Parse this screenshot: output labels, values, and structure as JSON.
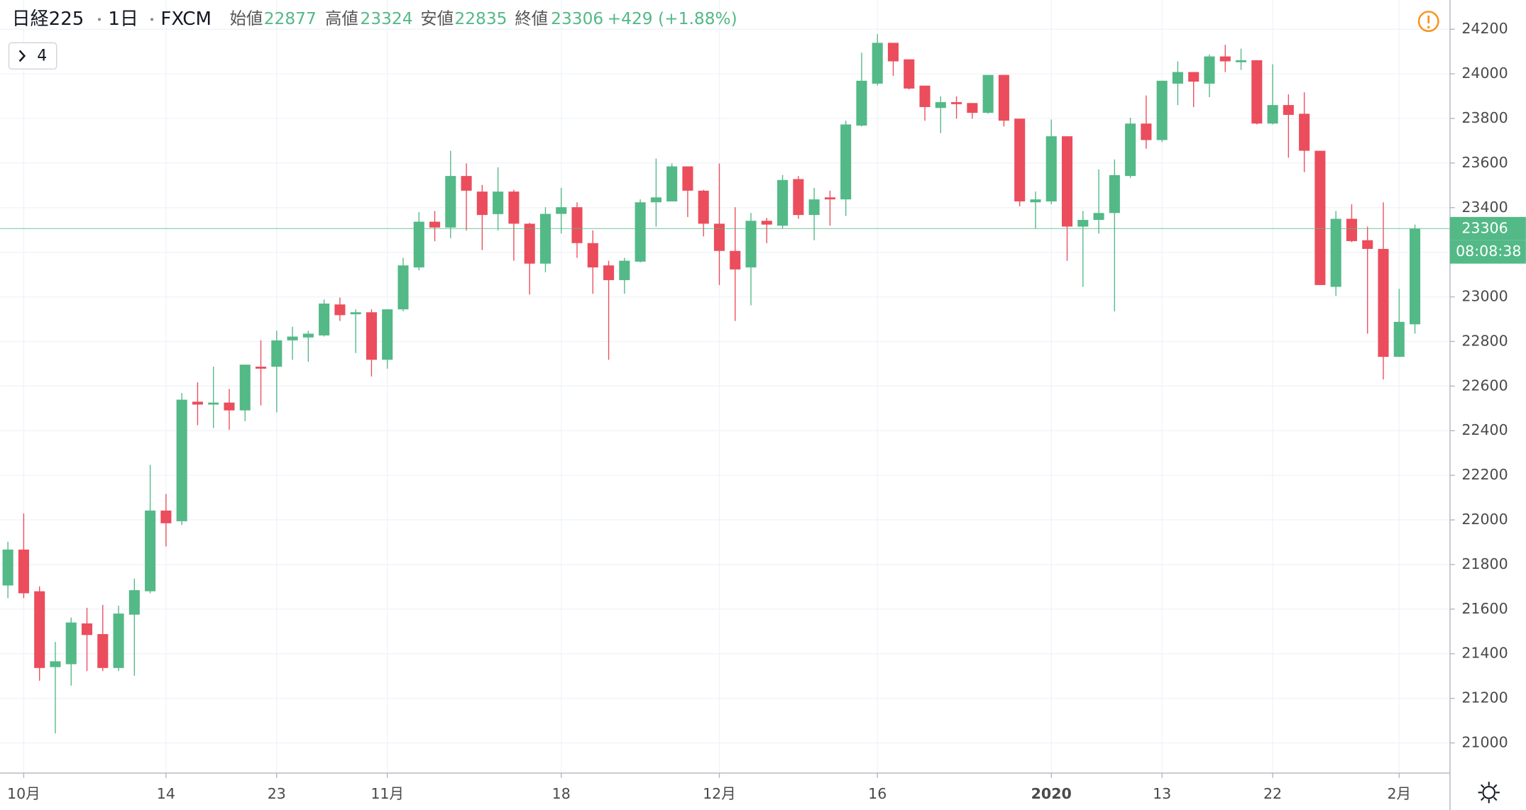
{
  "chart_data": {
    "type": "candlestick",
    "symbol": "日経225",
    "interval": "1日",
    "source": "FXCM",
    "header": {
      "open_label": "始値",
      "open": 22877,
      "high_label": "高値",
      "high": 23324,
      "low_label": "安値",
      "low": 22835,
      "close_label": "終値",
      "close": 23306,
      "change": "+429 (+1.88%)"
    },
    "indicator_count": 4,
    "countdown": "08:08:38",
    "categories": [
      null,
      "10月",
      null,
      null,
      null,
      null,
      null,
      null,
      null,
      null,
      "14",
      null,
      null,
      null,
      null,
      null,
      null,
      "23",
      null,
      null,
      null,
      null,
      null,
      null,
      "11月",
      null,
      null,
      null,
      null,
      null,
      null,
      null,
      null,
      null,
      null,
      "18",
      null,
      null,
      null,
      null,
      null,
      null,
      null,
      null,
      null,
      "12月",
      null,
      null,
      null,
      null,
      null,
      null,
      null,
      null,
      null,
      "16",
      null,
      null,
      null,
      null,
      null,
      null,
      null,
      null,
      null,
      null,
      "2020",
      null,
      null,
      null,
      null,
      null,
      null,
      "13",
      null,
      null,
      null,
      null,
      null,
      null,
      "22",
      null,
      null,
      null,
      null,
      null,
      null,
      null,
      "2月",
      null
    ],
    "open": [
      21706,
      21867,
      21680,
      21340,
      21353,
      21536,
      21488,
      21336,
      21575,
      21680,
      22042,
      21994,
      22530,
      22517,
      22526,
      22491,
      22687,
      22687,
      22805,
      22818,
      22827,
      22966,
      22922,
      22931,
      22718,
      22944,
      23132,
      23337,
      23311,
      23542,
      23472,
      23371,
      23472,
      23328,
      23149,
      23372,
      23402,
      23241,
      23141,
      23075,
      23158,
      23424,
      23428,
      23585,
      23476,
      23328,
      23206,
      23132,
      23341,
      23319,
      23528,
      23367,
      23446,
      23437,
      23768,
      23956,
      24139,
      24065,
      23947,
      23847,
      23873,
      23869,
      23825,
      23995,
      23799,
      23424,
      23428,
      23720,
      23315,
      23345,
      23376,
      23542,
      23777,
      23703,
      23956,
      24008,
      23956,
      24078,
      24052,
      24061,
      23777,
      23860,
      23821,
      23655,
      23045,
      23350,
      23254,
      23215,
      22731,
      22877
    ],
    "high": [
      21902,
      22029,
      21702,
      21453,
      21562,
      21606,
      21619,
      21615,
      21737,
      22247,
      22116,
      22569,
      22617,
      22687,
      22587,
      22696,
      22805,
      22848,
      22866,
      22848,
      22988,
      22997,
      22944,
      22944,
      22944,
      23175,
      23380,
      23385,
      23655,
      23598,
      23502,
      23581,
      23480,
      23332,
      23402,
      23489,
      23424,
      23298,
      23162,
      23175,
      23437,
      23620,
      23598,
      23585,
      23480,
      23598,
      23402,
      23376,
      23354,
      23546,
      23542,
      23489,
      23476,
      23790,
      24095,
      24178,
      24139,
      24065,
      23947,
      23899,
      23899,
      23869,
      23995,
      23995,
      23799,
      23472,
      23795,
      23720,
      23385,
      23572,
      23616,
      23803,
      23903,
      23969,
      24056,
      24008,
      24087,
      24130,
      24113,
      24061,
      24043,
      23908,
      23917,
      23655,
      23385,
      23415,
      23315,
      23424,
      23036,
      23324
    ],
    "low": [
      21649,
      21649,
      21279,
      21043,
      21257,
      21322,
      21322,
      21322,
      21301,
      21671,
      21881,
      21977,
      22425,
      22412,
      22404,
      22443,
      22513,
      22482,
      22718,
      22709,
      22822,
      22892,
      22748,
      22643,
      22678,
      22935,
      23119,
      23250,
      23263,
      23298,
      23210,
      23298,
      23162,
      23010,
      23110,
      23284,
      23175,
      23014,
      22718,
      23014,
      23154,
      23315,
      23428,
      23358,
      23271,
      23053,
      22892,
      22962,
      23241,
      23306,
      23350,
      23254,
      23319,
      23363,
      23764,
      23947,
      23991,
      23930,
      23790,
      23734,
      23799,
      23799,
      23821,
      23764,
      23406,
      23306,
      23415,
      23162,
      23045,
      23284,
      22935,
      23533,
      23664,
      23694,
      23860,
      23851,
      23895,
      24008,
      24017,
      23773,
      23773,
      23624,
      23559,
      23053,
      23005,
      23245,
      22835,
      22630,
      22731,
      22835
    ],
    "close": [
      21867,
      21671,
      21336,
      21366,
      21540,
      21484,
      21336,
      21580,
      21685,
      22042,
      21985,
      22539,
      22517,
      22526,
      22491,
      22696,
      22678,
      22805,
      22822,
      22835,
      22970,
      22918,
      22931,
      22718,
      22944,
      23141,
      23337,
      23311,
      23542,
      23476,
      23367,
      23472,
      23328,
      23149,
      23372,
      23402,
      23241,
      23132,
      23075,
      23162,
      23424,
      23446,
      23585,
      23476,
      23328,
      23206,
      23123,
      23341,
      23324,
      23524,
      23367,
      23437,
      23437,
      23773,
      23969,
      24139,
      24056,
      23934,
      23851,
      23873,
      23864,
      23825,
      23995,
      23790,
      23428,
      23437,
      23720,
      23315,
      23345,
      23376,
      23546,
      23777,
      23703,
      23969,
      24008,
      23965,
      24078,
      24056,
      24061,
      23777,
      23860,
      23816,
      23655,
      23053,
      23350,
      23250,
      23215,
      22731,
      22888,
      23306
    ],
    "up_color": "#53b987",
    "down_color": "#eb4d5c",
    "ylim": [
      20865,
      24331
    ],
    "yticks": [
      21000,
      21200,
      21400,
      21600,
      21800,
      22000,
      22200,
      22400,
      22600,
      22800,
      23000,
      23200,
      23400,
      23600,
      23800,
      24000,
      24200
    ],
    "grid": true
  }
}
